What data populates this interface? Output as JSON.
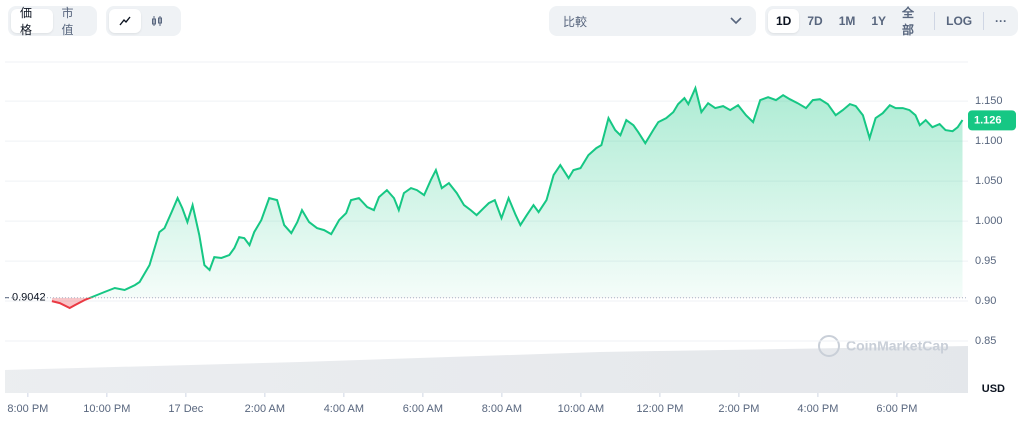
{
  "toolbar": {
    "tabs": [
      "価格",
      "市值"
    ],
    "compare": "比較",
    "ranges": [
      "1D",
      "7D",
      "1M",
      "1Y",
      "全部"
    ],
    "log": "LOG",
    "more": "···"
  },
  "watermark": "CoinMarketCap",
  "chart_data": {
    "type": "line",
    "unit": "USD",
    "baseline": 0.9042,
    "current": 1.126,
    "up_color": "#16c784",
    "down_color": "#ea3943",
    "xlim": [
      -0.3,
      23.8
    ],
    "ylim": [
      0.785,
      1.199
    ],
    "yticks": [
      {
        "value": 0.9,
        "label": "0.90"
      },
      0.85,
      0.95,
      {
        "value": 1.0,
        "label": "1.000"
      },
      {
        "value": 1.05,
        "label": "1.050"
      },
      {
        "value": 1.1,
        "label": "1.100"
      },
      {
        "value": 1.15,
        "label": "1.150"
      }
    ],
    "xticks": [
      {
        "value": 0,
        "label": "8:00 PM"
      },
      {
        "value": 2,
        "label": "10:00 PM"
      },
      {
        "value": 4,
        "label": "17 Dec"
      },
      {
        "value": 6,
        "label": "2:00 AM"
      },
      {
        "value": 8,
        "label": "4:00 AM"
      },
      {
        "value": 10,
        "label": "6:00 AM"
      },
      {
        "value": 12,
        "label": "8:00 AM"
      },
      {
        "value": 14,
        "label": "10:00 AM"
      },
      {
        "value": 16,
        "label": "12:00 PM"
      },
      {
        "value": 18,
        "label": "2:00 PM"
      },
      {
        "value": 20,
        "label": "4:00 PM"
      },
      {
        "value": 22,
        "label": "6:00 PM"
      }
    ],
    "series": [
      {
        "color": "#16c784",
        "x": [
          0.61,
          0.81,
          1.06,
          1.19,
          1.44,
          1.69,
          1.94,
          2.2,
          2.45,
          2.71,
          2.83,
          3.08,
          3.33,
          3.46,
          3.64,
          3.79,
          3.91,
          4.04,
          4.17,
          4.34,
          4.47,
          4.6,
          4.72,
          4.9,
          5.1,
          5.23,
          5.35,
          5.48,
          5.61,
          5.73,
          5.91,
          6.11,
          6.31,
          6.49,
          6.67,
          6.82,
          6.94,
          7.12,
          7.32,
          7.5,
          7.68,
          7.88,
          8.06,
          8.18,
          8.38,
          8.59,
          8.76,
          8.89,
          9.09,
          9.27,
          9.39,
          9.52,
          9.7,
          9.85,
          10.03,
          10.2,
          10.33,
          10.48,
          10.66,
          10.86,
          11.04,
          11.21,
          11.36,
          11.54,
          11.67,
          11.82,
          11.99,
          12.17,
          12.35,
          12.47,
          12.63,
          12.8,
          12.93,
          13.13,
          13.31,
          13.48,
          13.69,
          13.81,
          13.99,
          14.19,
          14.39,
          14.52,
          14.7,
          14.87,
          15,
          15.15,
          15.33,
          15.45,
          15.63,
          15.83,
          15.96,
          16.16,
          16.34,
          16.46,
          16.62,
          16.72,
          16.9,
          17.05,
          17.22,
          17.4,
          17.6,
          17.78,
          17.98,
          18.18,
          18.36,
          18.54,
          18.74,
          18.94,
          19.12,
          19.29,
          19.49,
          19.7,
          19.87,
          20.05,
          20.25,
          20.45,
          20.63,
          20.81,
          20.96,
          21.14,
          21.31,
          21.46,
          21.64,
          21.82,
          21.97,
          22.15,
          22.32,
          22.47,
          22.58,
          22.73,
          22.9,
          23.08,
          23.23,
          23.41,
          23.54,
          23.66
        ],
        "values": [
          0.9,
          0.8975,
          0.8913,
          0.895,
          0.9013,
          0.9063,
          0.9113,
          0.9163,
          0.9138,
          0.92,
          0.9238,
          0.945,
          0.9863,
          0.9913,
          1.0113,
          1.0288,
          1.0163,
          0.9988,
          1.02,
          0.9825,
          0.945,
          0.9388,
          0.955,
          0.9538,
          0.9575,
          0.9663,
          0.98,
          0.9788,
          0.97,
          0.9863,
          1.0013,
          1.0288,
          1.0263,
          0.995,
          0.985,
          0.9988,
          1.0138,
          0.9988,
          0.9913,
          0.9888,
          0.9838,
          1.0013,
          1.01,
          1.0263,
          1.0288,
          1.0175,
          1.0138,
          1.03,
          1.0388,
          1.0288,
          1.0138,
          1.035,
          1.0413,
          1.0388,
          1.0325,
          1.0513,
          1.0638,
          1.0413,
          1.0475,
          1.035,
          1.02,
          1.0138,
          1.0075,
          1.0163,
          1.0225,
          1.0263,
          1.0038,
          1.0288,
          1.0075,
          0.995,
          1.0075,
          1.02,
          1.0113,
          1.0263,
          1.0575,
          1.07,
          1.0538,
          1.0638,
          1.0663,
          1.0825,
          1.0913,
          1.095,
          1.1288,
          1.1138,
          1.1075,
          1.1263,
          1.12,
          1.1113,
          1.0975,
          1.1138,
          1.1238,
          1.1288,
          1.1363,
          1.1463,
          1.1538,
          1.1463,
          1.1663,
          1.1363,
          1.1475,
          1.1413,
          1.1438,
          1.1388,
          1.145,
          1.1325,
          1.1238,
          1.1513,
          1.155,
          1.1513,
          1.1575,
          1.1525,
          1.1475,
          1.1413,
          1.1513,
          1.1525,
          1.1463,
          1.1325,
          1.1388,
          1.1463,
          1.1438,
          1.1325,
          1.1038,
          1.1288,
          1.135,
          1.145,
          1.1413,
          1.1413,
          1.1388,
          1.1325,
          1.12,
          1.1263,
          1.1175,
          1.1213,
          1.1138,
          1.1125,
          1.1175,
          1.1263
        ]
      }
    ]
  }
}
